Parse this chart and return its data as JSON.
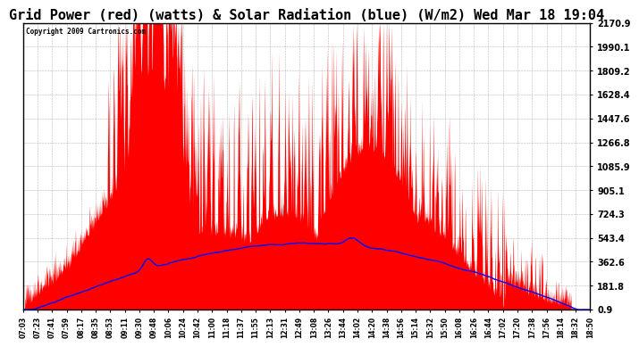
{
  "title": "Grid Power (red) (watts) & Solar Radiation (blue) (W/m2) Wed Mar 18 19:04",
  "copyright": "Copyright 2009 Cartronics.com",
  "yticks": [
    0.9,
    181.8,
    362.6,
    543.4,
    724.3,
    905.1,
    1085.9,
    1266.8,
    1447.6,
    1628.4,
    1809.2,
    1990.1,
    2170.9
  ],
  "xtick_labels": [
    "07:03",
    "07:23",
    "07:41",
    "07:59",
    "08:17",
    "08:35",
    "08:53",
    "09:11",
    "09:30",
    "09:48",
    "10:06",
    "10:24",
    "10:42",
    "11:00",
    "11:18",
    "11:37",
    "11:55",
    "12:13",
    "12:31",
    "12:49",
    "13:08",
    "13:26",
    "13:44",
    "14:02",
    "14:20",
    "14:38",
    "14:56",
    "15:14",
    "15:32",
    "15:50",
    "16:08",
    "16:26",
    "16:44",
    "17:02",
    "17:20",
    "17:38",
    "17:56",
    "18:14",
    "18:32",
    "18:50"
  ],
  "bg_color": "#ffffff",
  "plot_bg_color": "#ffffff",
  "grid_color": "#888888",
  "red_color": "#ff0000",
  "blue_color": "#0000ff",
  "title_fontsize": 11,
  "ymin": 0.9,
  "ymax": 2170.9
}
